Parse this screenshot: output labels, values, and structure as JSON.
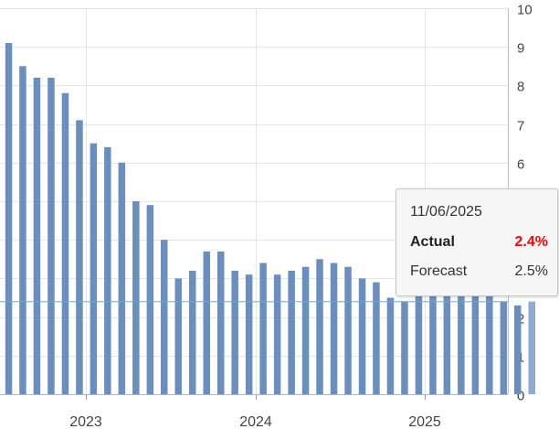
{
  "chart_data": {
    "type": "bar",
    "x_tick_labels": [
      "2023",
      "2024",
      "2025"
    ],
    "y_tick_labels": [
      "0",
      "1",
      "2",
      "3",
      "4",
      "5",
      "6",
      "7",
      "8",
      "9",
      "10"
    ],
    "ylim": [
      0,
      10
    ],
    "grid": true,
    "y_axis_side": "right",
    "bar_color": "#6a8fbf",
    "values": [
      9.1,
      8.5,
      8.2,
      8.2,
      7.8,
      7.1,
      6.5,
      6.4,
      6.0,
      5.0,
      4.9,
      4.0,
      3.0,
      3.2,
      3.7,
      3.7,
      3.2,
      3.1,
      3.4,
      3.1,
      3.2,
      3.3,
      3.5,
      3.4,
      3.3,
      3.0,
      2.9,
      2.5,
      2.4,
      2.6,
      2.7,
      2.7,
      2.8,
      2.8,
      2.9,
      2.4,
      2.3,
      2.4
    ],
    "reference_line": 2.4,
    "reference_line_color": "#6fa7d6"
  },
  "tooltip": {
    "date": "11/06/2025",
    "actual_label": "Actual",
    "actual_value": "2.4%",
    "actual_color": "#ff0000",
    "forecast_label": "Forecast",
    "forecast_value": "2.5%"
  }
}
